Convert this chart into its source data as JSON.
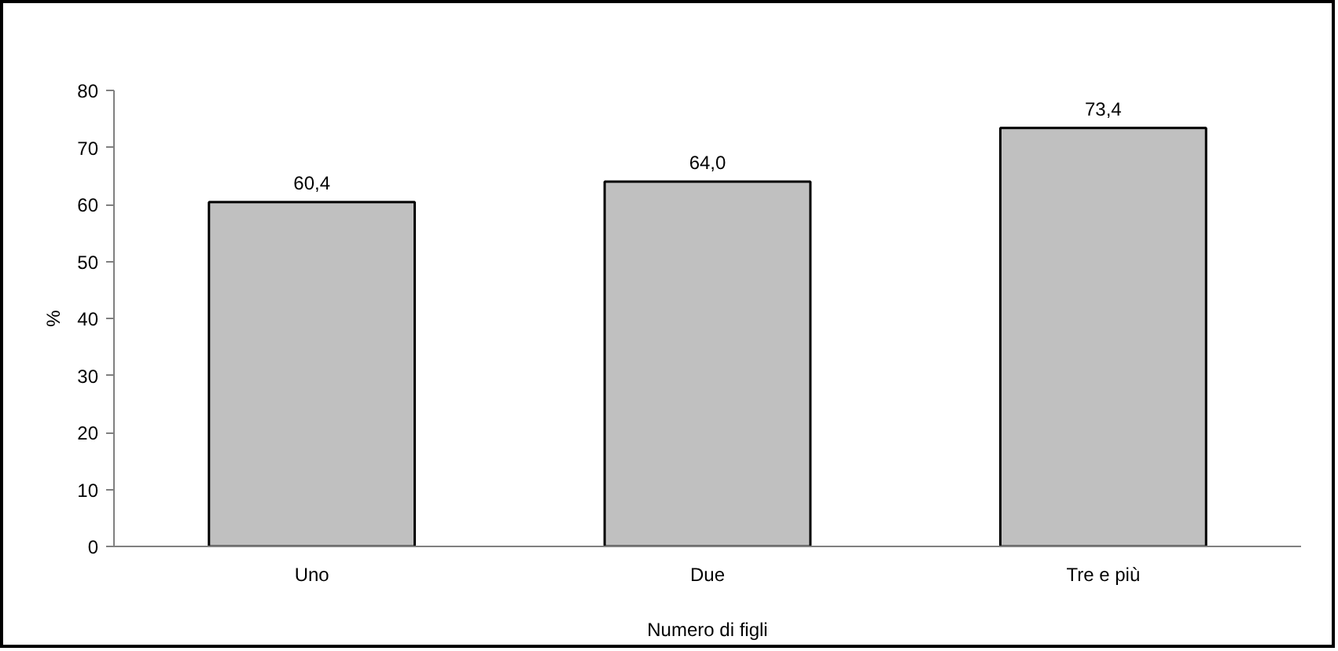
{
  "chart_data": {
    "type": "bar",
    "xlabel": "Numero di figli",
    "ylabel": "%",
    "categories": [
      "Uno",
      "Due",
      "Tre e più"
    ],
    "values": [
      60.4,
      64.0,
      73.4
    ],
    "value_labels": [
      "60,4",
      "64,0",
      "73,4"
    ],
    "color": "#c0c0c0",
    "ylim": [
      0,
      80
    ],
    "yticks": [
      0,
      10,
      20,
      30,
      40,
      50,
      60,
      70,
      80
    ],
    "grid": false
  }
}
